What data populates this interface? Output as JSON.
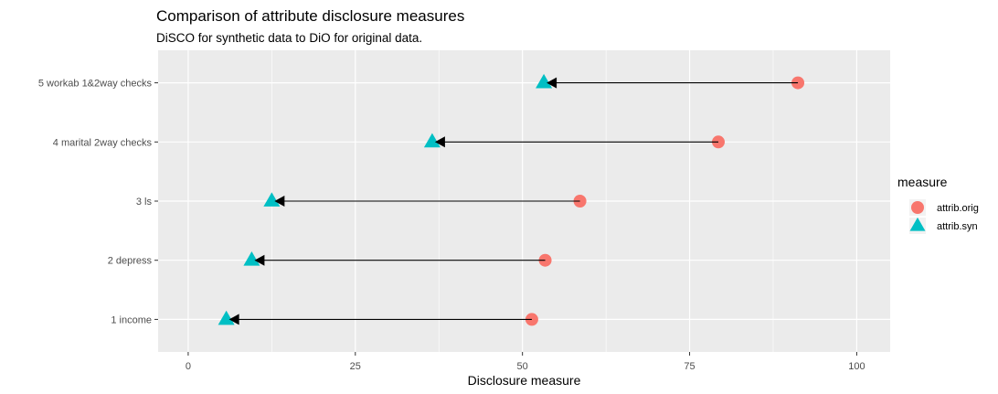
{
  "chart_data": {
    "type": "dumbbell",
    "title": "Comparison of attribute disclosure measures",
    "subtitle": "DiSCO for synthetic data  to DiO for original data.",
    "xlabel": "Disclosure measure",
    "ylabel": "",
    "xlim": [
      -4.5,
      105
    ],
    "xticks": [
      0,
      25,
      50,
      75,
      100
    ],
    "grid": true,
    "legend": {
      "title": "measure",
      "placement": "right"
    },
    "categories": [
      "5 workab 1&2way checks",
      "4 marital 2way checks",
      "3 ls",
      "2 depress",
      "1 income"
    ],
    "series": [
      {
        "name": "attrib.orig",
        "shape": "circle",
        "color": "#F8766D",
        "values": [
          91.2,
          79.3,
          58.6,
          53.4,
          51.4
        ]
      },
      {
        "name": "attrib.syn",
        "shape": "triangle",
        "color": "#00BFC4",
        "values": [
          53.2,
          36.5,
          12.5,
          9.5,
          5.7
        ]
      }
    ],
    "arrows": {
      "from": "attrib.orig",
      "to": "attrib.syn",
      "color": "#000000"
    },
    "background": "#EBEBEB"
  }
}
